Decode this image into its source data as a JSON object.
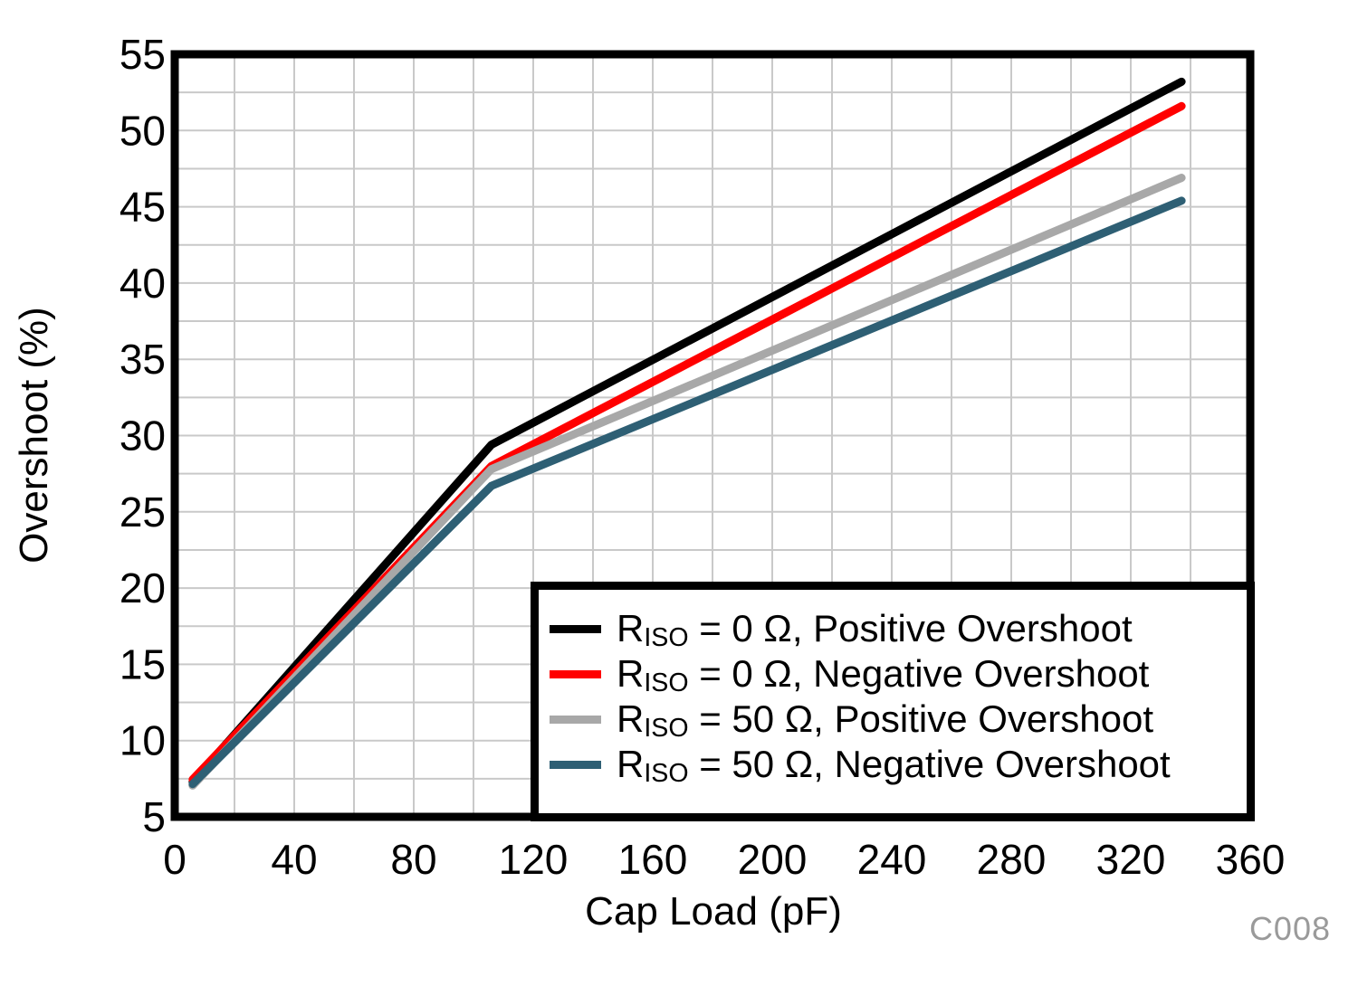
{
  "chart_data": {
    "type": "line",
    "title": "",
    "xlabel": "Cap Load (pF)",
    "ylabel": "Overshoot (%)",
    "watermark": "C008",
    "legend_position": "bottom-right-inside",
    "grid": true,
    "grid_color": "#c9c9c9",
    "axis_color": "#000000",
    "x_axis": {
      "min": 0,
      "max": 360,
      "grid_step": 20,
      "ticks": [
        0,
        40,
        80,
        120,
        160,
        200,
        240,
        280,
        320,
        360
      ]
    },
    "y_axis": {
      "min": 5,
      "max": 55,
      "grid_step": 2.5,
      "ticks": [
        5,
        10,
        15,
        20,
        25,
        30,
        35,
        40,
        45,
        50,
        55
      ]
    },
    "series": [
      {
        "name": "RISO = 0 Ohm, Positive Overshoot",
        "label_pre": "R",
        "label_sub": "ISO",
        "label_post": " = 0 Ω, Positive Overshoot",
        "color": "#000000",
        "points": [
          [
            6,
            7.3
          ],
          [
            106,
            29.4
          ],
          [
            337,
            53.2
          ]
        ]
      },
      {
        "name": "RISO = 0 Ohm, Negative Overshoot",
        "label_pre": "R",
        "label_sub": "ISO",
        "label_post": " = 0 Ω, Negative Overshoot",
        "color": "#ff0000",
        "points": [
          [
            6,
            7.45
          ],
          [
            106,
            28.0
          ],
          [
            337,
            51.6
          ]
        ]
      },
      {
        "name": "RISO = 50 Ohm, Positive Overshoot",
        "label_pre": "R",
        "label_sub": "ISO",
        "label_post": " = 50 Ω, Positive Overshoot",
        "color": "#a8a8a8",
        "points": [
          [
            6,
            7.05
          ],
          [
            106,
            27.8
          ],
          [
            337,
            46.9
          ]
        ]
      },
      {
        "name": "RISO = 50 Ohm, Negative Overshoot",
        "label_pre": "R",
        "label_sub": "ISO",
        "label_post": " = 50 Ω, Negative Overshoot",
        "color": "#2e5f74",
        "points": [
          [
            6,
            7.15
          ],
          [
            106,
            26.7
          ],
          [
            337,
            45.4
          ]
        ]
      }
    ]
  }
}
